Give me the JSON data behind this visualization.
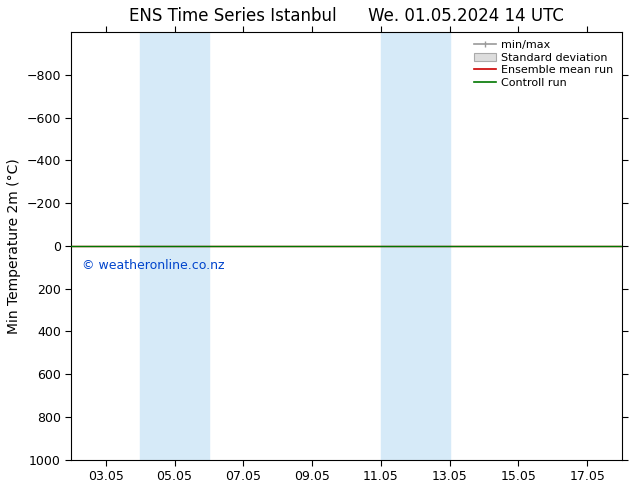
{
  "title_left": "ENS Time Series Istanbul",
  "title_right": "We. 01.05.2024 14 UTC",
  "ylabel": "Min Temperature 2m (°C)",
  "ylim_bottom": 1000,
  "ylim_top": -1000,
  "yticks": [
    -800,
    -600,
    -400,
    -200,
    0,
    200,
    400,
    600,
    800,
    1000
  ],
  "xtick_labels": [
    "03.05",
    "05.05",
    "07.05",
    "09.05",
    "11.05",
    "13.05",
    "15.05",
    "17.05"
  ],
  "xtick_days": [
    3,
    5,
    7,
    9,
    11,
    13,
    15,
    17
  ],
  "xlim_start_day": 2,
  "xlim_end_day": 18,
  "blue_bands": [
    {
      "xstart_day": 4,
      "xend_day": 6
    },
    {
      "xstart_day": 11,
      "xend_day": 13
    }
  ],
  "control_run_y": 0,
  "ensemble_mean_y": 0,
  "control_run_color": "#007700",
  "ensemble_mean_color": "#cc0000",
  "band_color": "#d6eaf8",
  "watermark_text": "© weatheronline.co.nz",
  "watermark_color": "#0044cc",
  "background_color": "#ffffff",
  "legend_entries": [
    "min/max",
    "Standard deviation",
    "Ensemble mean run",
    "Controll run"
  ],
  "title_fontsize": 12,
  "axis_label_fontsize": 10,
  "tick_fontsize": 9,
  "legend_fontsize": 8
}
